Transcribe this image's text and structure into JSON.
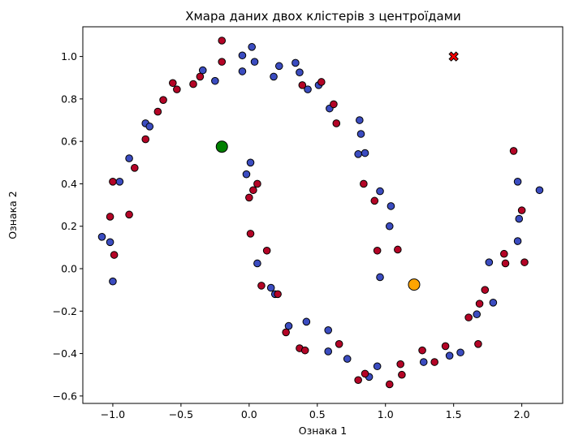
{
  "chart_data": {
    "type": "scatter",
    "title": "Хмара даних двох клістерів з центроїдами",
    "xlabel": "Ознака 1",
    "ylabel": "Ознака 2",
    "xlim": [
      -1.22,
      2.3
    ],
    "ylim": [
      -0.635,
      1.14
    ],
    "xticks": [
      -1.0,
      -0.5,
      0.0,
      0.5,
      1.0,
      1.5,
      2.0
    ],
    "xtick_labels": [
      "−1.0",
      "−0.5",
      "0.0",
      "0.5",
      "1.0",
      "1.5",
      "2.0"
    ],
    "yticks": [
      -0.6,
      -0.4,
      -0.2,
      0.0,
      0.2,
      0.4,
      0.6,
      0.8,
      1.0
    ],
    "ytick_labels": [
      "−0.6",
      "−0.4",
      "−0.2",
      "0.0",
      "0.2",
      "0.4",
      "0.6",
      "0.8",
      "1.0"
    ],
    "grid": false,
    "legend": "none",
    "colors": {
      "blue": "#3b4cc0",
      "red": "#b40426",
      "edge": "#000000",
      "centroid_green": "#008000",
      "centroid_orange": "#ffa500",
      "marker_x": "#ff0000"
    },
    "series": [
      {
        "color": "blue",
        "points": [
          [
            -1.08,
            0.15
          ],
          [
            -1.02,
            0.125
          ],
          [
            -1.0,
            -0.06
          ],
          [
            -0.95,
            0.41
          ],
          [
            -0.88,
            0.52
          ],
          [
            -0.76,
            0.685
          ],
          [
            -0.73,
            0.67
          ],
          [
            -0.34,
            0.935
          ],
          [
            -0.25,
            0.885
          ],
          [
            -0.05,
            1.005
          ],
          [
            -0.05,
            0.93
          ],
          [
            0.02,
            1.045
          ],
          [
            0.04,
            0.975
          ],
          [
            0.18,
            0.905
          ],
          [
            0.22,
            0.955
          ],
          [
            0.34,
            0.97
          ],
          [
            0.37,
            0.925
          ],
          [
            0.43,
            0.845
          ],
          [
            0.51,
            0.865
          ],
          [
            0.59,
            0.755
          ],
          [
            0.81,
            0.7
          ],
          [
            0.82,
            0.635
          ],
          [
            0.8,
            0.54
          ],
          [
            0.85,
            0.545
          ],
          [
            -0.02,
            0.445
          ],
          [
            0.01,
            0.5
          ],
          [
            0.06,
            0.025
          ],
          [
            0.16,
            -0.09
          ],
          [
            0.19,
            -0.12
          ],
          [
            0.29,
            -0.27
          ],
          [
            0.42,
            -0.25
          ],
          [
            0.58,
            -0.29
          ],
          [
            0.58,
            -0.39
          ],
          [
            0.72,
            -0.425
          ],
          [
            0.88,
            -0.51
          ],
          [
            0.94,
            -0.46
          ],
          [
            0.96,
            0.365
          ],
          [
            1.03,
            0.2
          ],
          [
            1.04,
            0.295
          ],
          [
            0.96,
            -0.04
          ],
          [
            1.28,
            -0.44
          ],
          [
            1.47,
            -0.41
          ],
          [
            1.55,
            -0.395
          ],
          [
            1.67,
            -0.215
          ],
          [
            1.76,
            0.03
          ],
          [
            1.79,
            -0.16
          ],
          [
            1.97,
            0.13
          ],
          [
            1.97,
            0.41
          ],
          [
            1.98,
            0.235
          ],
          [
            2.13,
            0.37
          ]
        ]
      },
      {
        "color": "red",
        "points": [
          [
            -1.0,
            0.41
          ],
          [
            -1.02,
            0.245
          ],
          [
            -0.99,
            0.065
          ],
          [
            -0.88,
            0.255
          ],
          [
            -0.84,
            0.475
          ],
          [
            -0.76,
            0.61
          ],
          [
            -0.67,
            0.74
          ],
          [
            -0.63,
            0.795
          ],
          [
            -0.56,
            0.875
          ],
          [
            -0.53,
            0.845
          ],
          [
            -0.41,
            0.87
          ],
          [
            -0.36,
            0.905
          ],
          [
            -0.2,
            1.075
          ],
          [
            -0.2,
            0.975
          ],
          [
            0.39,
            0.865
          ],
          [
            0.53,
            0.88
          ],
          [
            0.62,
            0.775
          ],
          [
            0.64,
            0.685
          ],
          [
            0.84,
            0.4
          ],
          [
            0.92,
            0.32
          ],
          [
            0.94,
            0.085
          ],
          [
            1.09,
            0.09
          ],
          [
            0.0,
            0.335
          ],
          [
            0.03,
            0.37
          ],
          [
            0.06,
            0.4
          ],
          [
            0.01,
            0.165
          ],
          [
            0.13,
            0.085
          ],
          [
            0.09,
            -0.08
          ],
          [
            0.21,
            -0.12
          ],
          [
            0.27,
            -0.3
          ],
          [
            0.37,
            -0.375
          ],
          [
            0.41,
            -0.385
          ],
          [
            0.66,
            -0.355
          ],
          [
            0.8,
            -0.525
          ],
          [
            0.85,
            -0.495
          ],
          [
            1.03,
            -0.545
          ],
          [
            1.11,
            -0.45
          ],
          [
            1.12,
            -0.5
          ],
          [
            1.27,
            -0.385
          ],
          [
            1.36,
            -0.44
          ],
          [
            1.44,
            -0.365
          ],
          [
            1.61,
            -0.23
          ],
          [
            1.68,
            -0.355
          ],
          [
            1.69,
            -0.165
          ],
          [
            1.73,
            -0.1
          ],
          [
            1.87,
            0.07
          ],
          [
            1.88,
            0.025
          ],
          [
            1.94,
            0.555
          ],
          [
            2.0,
            0.275
          ],
          [
            2.02,
            0.03
          ]
        ]
      }
    ],
    "centroids": [
      {
        "x": -0.2,
        "y": 0.575,
        "color": "centroid_green"
      },
      {
        "x": 1.21,
        "y": -0.075,
        "color": "centroid_orange"
      }
    ],
    "markers": [
      {
        "x": 1.5,
        "y": 1.0,
        "shape": "x",
        "color": "marker_x"
      }
    ]
  }
}
